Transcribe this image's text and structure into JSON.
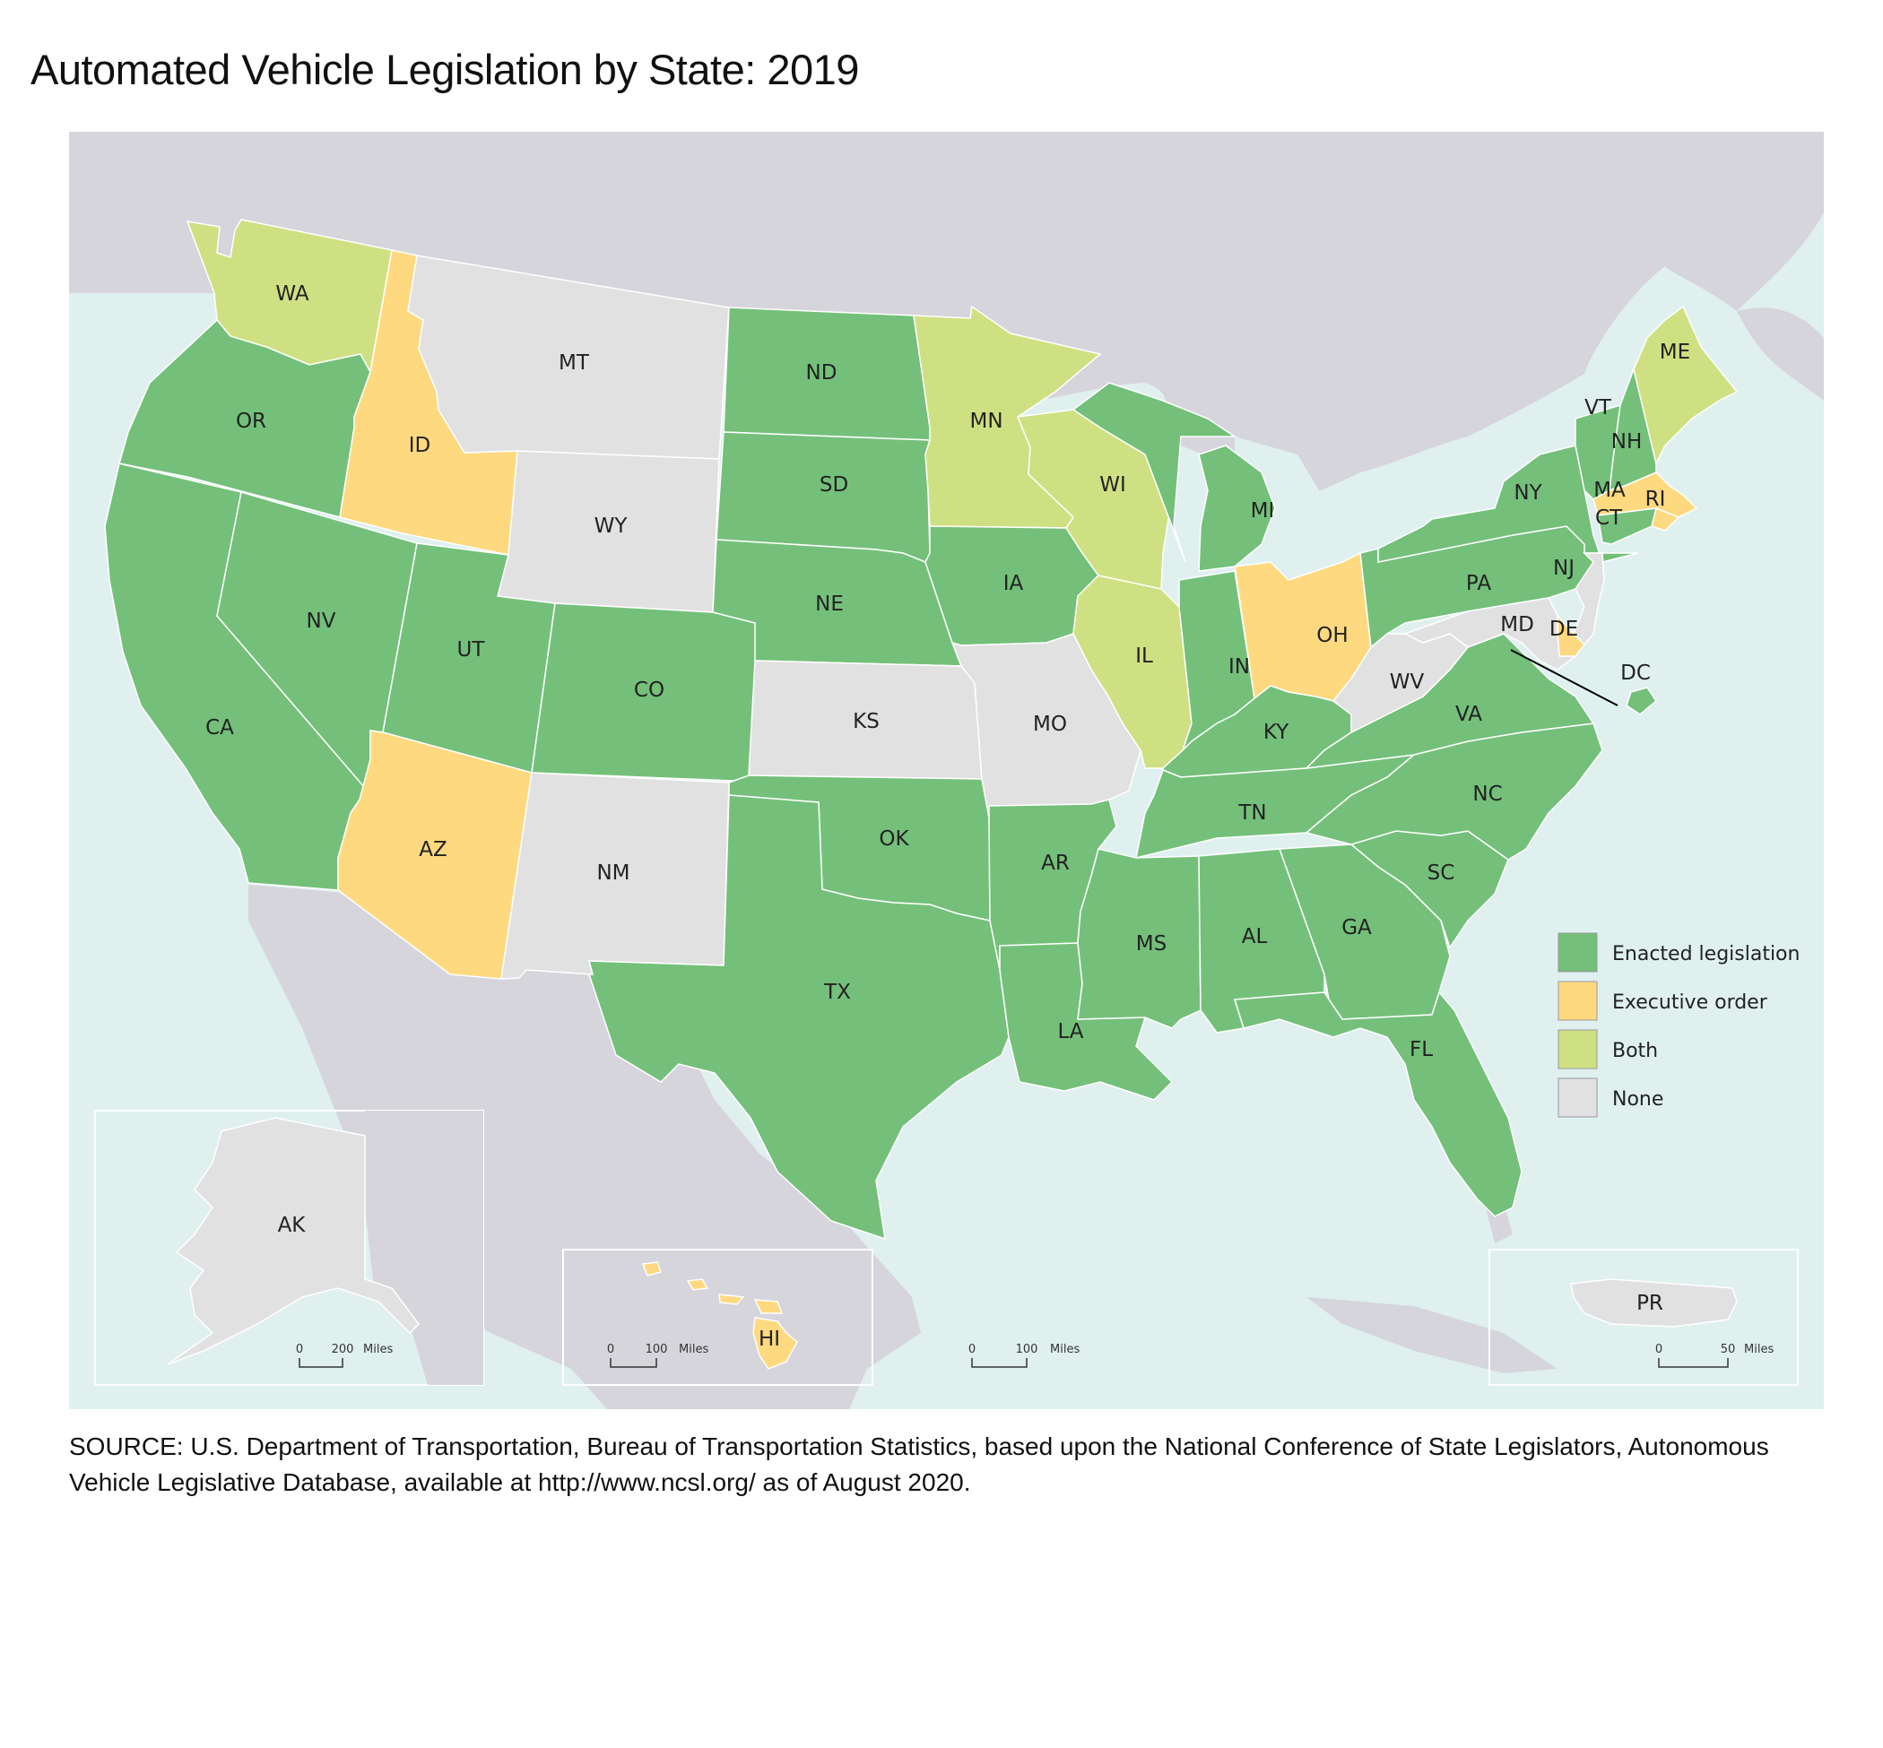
{
  "title": "Automated Vehicle Legislation by State: 2019",
  "legend": [
    {
      "key": "enacted",
      "label": "Enacted legislation",
      "color": "#74c07a"
    },
    {
      "key": "executive",
      "label": "Executive order",
      "color": "#fed97f"
    },
    {
      "key": "both",
      "label": "Both",
      "color": "#cfe082"
    },
    {
      "key": "none",
      "label": "None",
      "color": "#e1e1e1"
    }
  ],
  "colors": {
    "water": "#dff0ef",
    "foreign_land": "#d6d5db",
    "border": "#ffffff"
  },
  "states": [
    {
      "abbr": "WA",
      "status": "both"
    },
    {
      "abbr": "OR",
      "status": "enacted"
    },
    {
      "abbr": "CA",
      "status": "enacted"
    },
    {
      "abbr": "NV",
      "status": "enacted"
    },
    {
      "abbr": "ID",
      "status": "executive"
    },
    {
      "abbr": "MT",
      "status": "none"
    },
    {
      "abbr": "WY",
      "status": "none"
    },
    {
      "abbr": "UT",
      "status": "enacted"
    },
    {
      "abbr": "AZ",
      "status": "executive"
    },
    {
      "abbr": "CO",
      "status": "enacted"
    },
    {
      "abbr": "NM",
      "status": "none"
    },
    {
      "abbr": "ND",
      "status": "enacted"
    },
    {
      "abbr": "SD",
      "status": "enacted"
    },
    {
      "abbr": "NE",
      "status": "enacted"
    },
    {
      "abbr": "KS",
      "status": "none"
    },
    {
      "abbr": "OK",
      "status": "enacted"
    },
    {
      "abbr": "TX",
      "status": "enacted"
    },
    {
      "abbr": "MN",
      "status": "both"
    },
    {
      "abbr": "IA",
      "status": "enacted"
    },
    {
      "abbr": "MO",
      "status": "none"
    },
    {
      "abbr": "AR",
      "status": "enacted"
    },
    {
      "abbr": "LA",
      "status": "enacted"
    },
    {
      "abbr": "WI",
      "status": "both"
    },
    {
      "abbr": "IL",
      "status": "both"
    },
    {
      "abbr": "MI",
      "status": "enacted"
    },
    {
      "abbr": "IN",
      "status": "enacted"
    },
    {
      "abbr": "OH",
      "status": "executive"
    },
    {
      "abbr": "KY",
      "status": "enacted"
    },
    {
      "abbr": "TN",
      "status": "enacted"
    },
    {
      "abbr": "MS",
      "status": "enacted"
    },
    {
      "abbr": "AL",
      "status": "enacted"
    },
    {
      "abbr": "GA",
      "status": "enacted"
    },
    {
      "abbr": "FL",
      "status": "enacted"
    },
    {
      "abbr": "SC",
      "status": "enacted"
    },
    {
      "abbr": "NC",
      "status": "enacted"
    },
    {
      "abbr": "VA",
      "status": "enacted"
    },
    {
      "abbr": "WV",
      "status": "none"
    },
    {
      "abbr": "PA",
      "status": "enacted"
    },
    {
      "abbr": "NY",
      "status": "enacted"
    },
    {
      "abbr": "VT",
      "status": "enacted"
    },
    {
      "abbr": "NH",
      "status": "enacted"
    },
    {
      "abbr": "ME",
      "status": "both"
    },
    {
      "abbr": "MA",
      "status": "executive"
    },
    {
      "abbr": "RI",
      "status": "executive"
    },
    {
      "abbr": "CT",
      "status": "enacted"
    },
    {
      "abbr": "NJ",
      "status": "none"
    },
    {
      "abbr": "DE",
      "status": "executive"
    },
    {
      "abbr": "MD",
      "status": "none"
    },
    {
      "abbr": "DC",
      "status": "enacted"
    },
    {
      "abbr": "AK",
      "status": "none"
    },
    {
      "abbr": "HI",
      "status": "executive"
    },
    {
      "abbr": "PR",
      "status": "none"
    }
  ],
  "scale_bars": [
    {
      "inset": "AK",
      "zero": "0",
      "value": "200",
      "unit": "Miles"
    },
    {
      "inset": "HI",
      "zero": "0",
      "value": "100",
      "unit": "Miles"
    },
    {
      "inset": "main",
      "zero": "0",
      "value": "100",
      "unit": "Miles"
    },
    {
      "inset": "PR",
      "zero": "0",
      "value": "50",
      "unit": "Miles"
    }
  ],
  "source": "SOURCE: U.S. Department of Transportation, Bureau of Transportation Statistics, based upon the National Conference of State Legislators, Autonomous Vehicle Legislative Database, available at http://www.ncsl.org/ as of August 2020."
}
